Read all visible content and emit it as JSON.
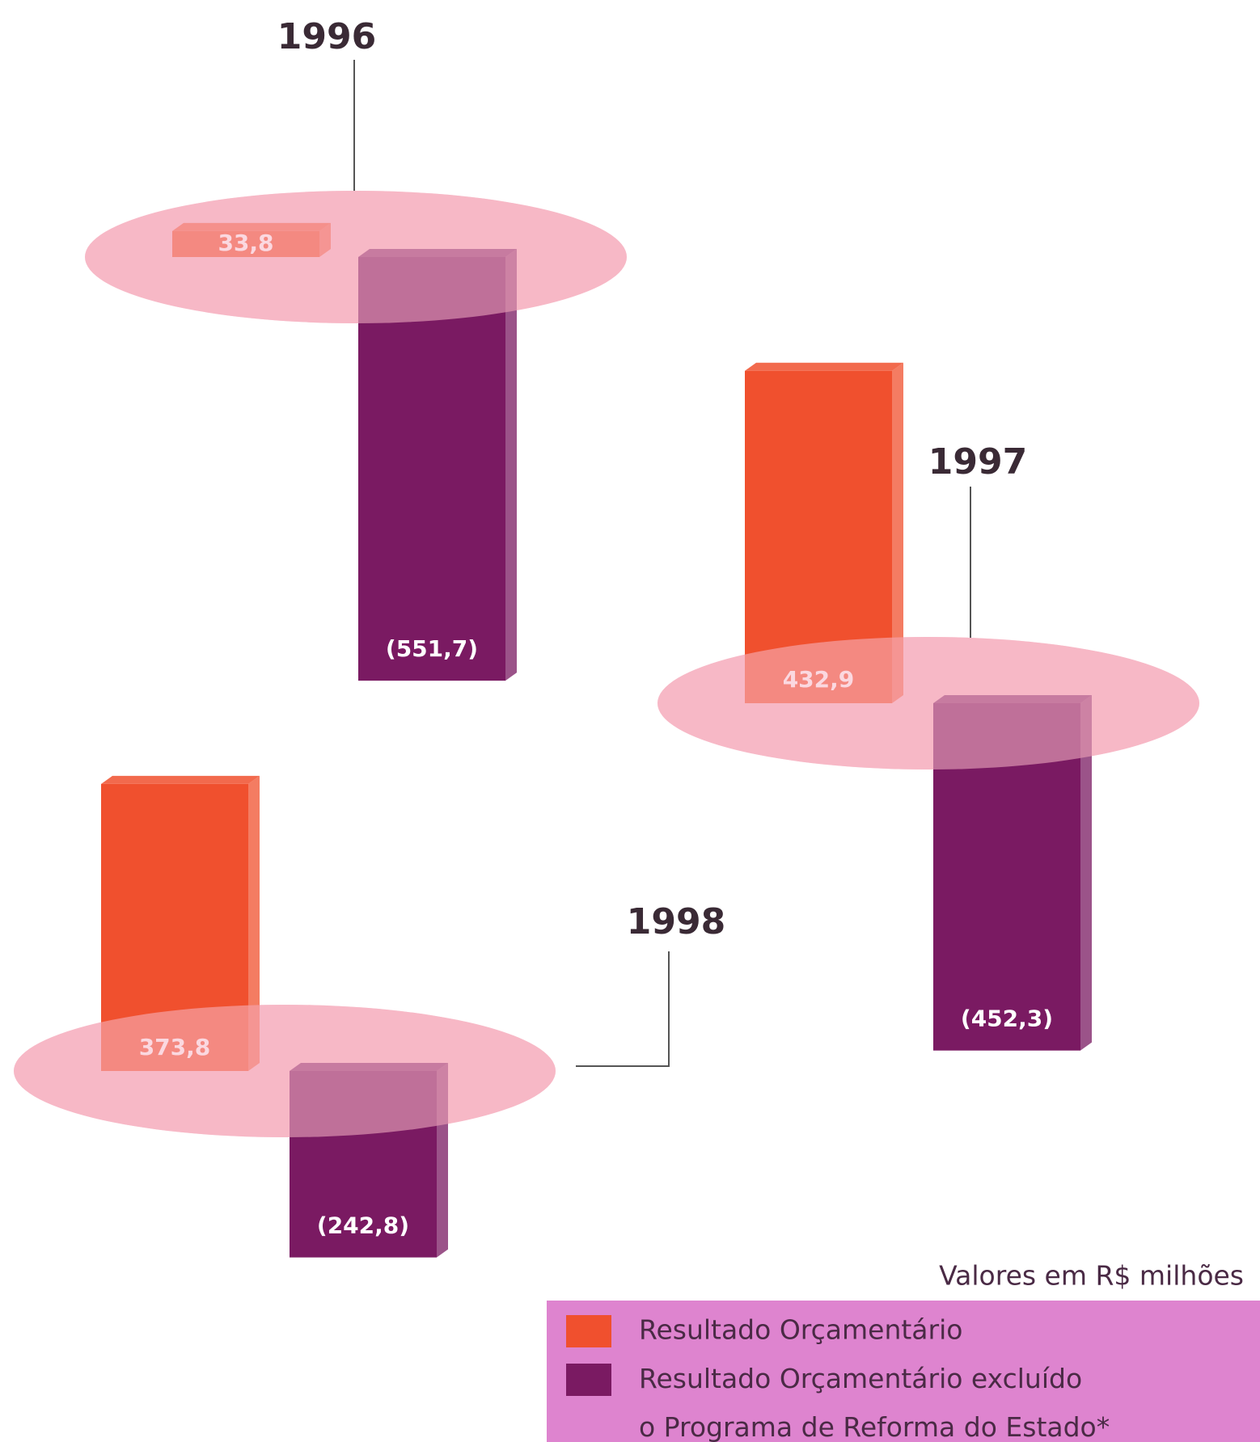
{
  "chart_data": {
    "type": "floating-bar",
    "categories": [
      "1996",
      "1997",
      "1998"
    ],
    "series": [
      {
        "name": "Resultado Orçamentário",
        "color": "#f0502e",
        "values": [
          33.8,
          432.9,
          373.8
        ],
        "value_labels": [
          "33,8",
          "432,9",
          "373,8"
        ]
      },
      {
        "name": "Resultado Orçamentário excluído o Programa de Reforma do Estado*",
        "color": "#7a1a62",
        "values": [
          -551.7,
          -452.3,
          -242.8
        ],
        "value_labels": [
          "(551,7)",
          "(452,3)",
          "(242,8)"
        ]
      }
    ],
    "disc_color": "#f7b8c6",
    "note": "Valores em R$ milhões"
  }
}
